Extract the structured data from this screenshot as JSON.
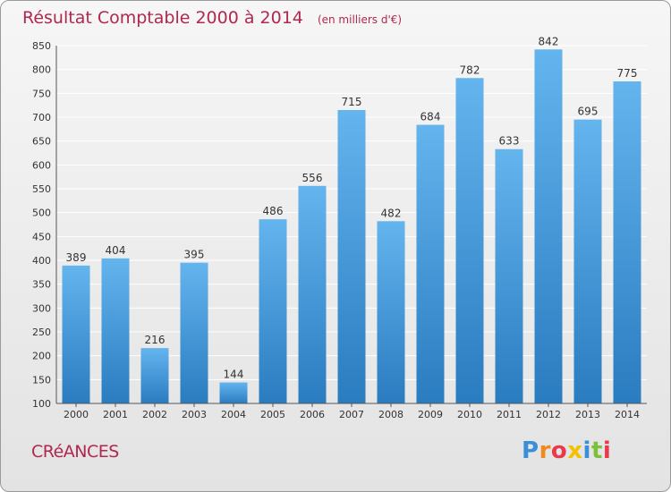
{
  "header": {
    "title": "Résultat Comptable 2000 à 2014",
    "subtitle": "(en milliers d'€)"
  },
  "footer": {
    "commune": "CRéANCES",
    "logo_letters": [
      {
        "ch": "P",
        "color": "#3a8fd8"
      },
      {
        "ch": "r",
        "color": "#f08a1e"
      },
      {
        "ch": "o",
        "color": "#e83a4a"
      },
      {
        "ch": "x",
        "color": "#f2c200"
      },
      {
        "ch": "i",
        "color": "#3a8fd8"
      },
      {
        "ch": "t",
        "color": "#7bbf3a"
      },
      {
        "ch": "i",
        "color": "#e83a4a"
      }
    ]
  },
  "colors": {
    "bar_top": "#64b4ee",
    "bar_bottom": "#2a7cc0",
    "grid": "#ffffff",
    "axis_text": "#333333",
    "label_text": "#333333",
    "title": "#b0284d"
  },
  "chart_data": {
    "type": "bar",
    "title": "Résultat Comptable 2000 à 2014",
    "subtitle": "(en milliers d'€)",
    "xlabel": "",
    "ylabel": "",
    "categories": [
      "2000",
      "2001",
      "2002",
      "2003",
      "2004",
      "2005",
      "2006",
      "2007",
      "2008",
      "2009",
      "2010",
      "2011",
      "2012",
      "2013",
      "2014"
    ],
    "values": [
      389,
      404,
      216,
      395,
      144,
      486,
      556,
      715,
      482,
      684,
      782,
      633,
      842,
      695,
      775
    ],
    "ylim": [
      100,
      850
    ],
    "yticks": [
      100,
      150,
      200,
      250,
      300,
      350,
      400,
      450,
      500,
      550,
      600,
      650,
      700,
      750,
      800,
      850
    ],
    "grid": true,
    "legend": "none"
  }
}
